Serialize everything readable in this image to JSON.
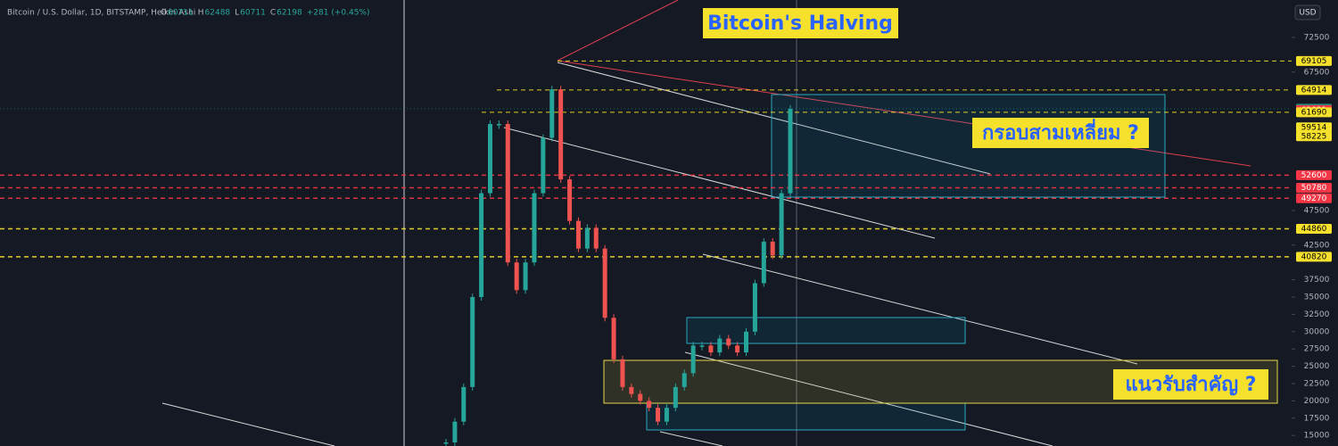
{
  "header": {
    "symbol": "Bitcoin / U.S. Dollar, 1D, BITSTAMP, Heikin Ashi",
    "ohlc": [
      {
        "key": "O",
        "value": 60711
      },
      {
        "key": "H",
        "value": 62488
      },
      {
        "key": "L",
        "value": 60711
      },
      {
        "key": "C",
        "value": 62198
      }
    ],
    "change": "+281 (+0.45%)",
    "currency": "USD"
  },
  "chart_data": {
    "type": "candles",
    "ylim": [
      13480,
      77910
    ],
    "yticks": [
      72500,
      67500,
      47500,
      42500,
      37500,
      35000,
      32500,
      30000,
      27500,
      25000,
      22500,
      20000,
      17500,
      15000
    ],
    "price_path": [
      14000,
      17000,
      22000,
      35000,
      50000,
      60000,
      60000,
      40000,
      36000,
      40000,
      50000,
      58000,
      65000,
      52000,
      46000,
      42000,
      45000,
      42000,
      32000,
      26000,
      22000,
      21000,
      20000,
      19000,
      17000,
      19000,
      22000,
      24000,
      28000,
      28000,
      27000,
      29000,
      28000,
      27000,
      30000,
      37000,
      43000,
      41000,
      50000,
      62198
    ],
    "up_color": "#26a69a",
    "down_color": "#ef5350",
    "levels": [
      {
        "value": 69105,
        "color": "#f5e12c"
      },
      {
        "value": 64914,
        "color": "#f5e12c"
      },
      {
        "value": 62198,
        "color": "#089981"
      },
      {
        "value": 62021,
        "color": "#f23645"
      },
      {
        "value": 61690,
        "color": "#f5e12c"
      },
      {
        "value": 59514,
        "color": "#f5e12c"
      },
      {
        "value": 58225,
        "color": "#f5e12c"
      },
      {
        "value": 52600,
        "color": "#f23645"
      },
      {
        "value": 50780,
        "color": "#f23645"
      },
      {
        "value": 49270,
        "color": "#f23645"
      },
      {
        "value": 44860,
        "color": "#f5e12c"
      },
      {
        "value": 40820,
        "color": "#f5e12c"
      }
    ]
  },
  "annotations": {
    "title": "Bitcoin's Halving",
    "triangle": "กรอบสามเหลี่ยม ?",
    "support": "แนวรับสำคัญ ?"
  }
}
